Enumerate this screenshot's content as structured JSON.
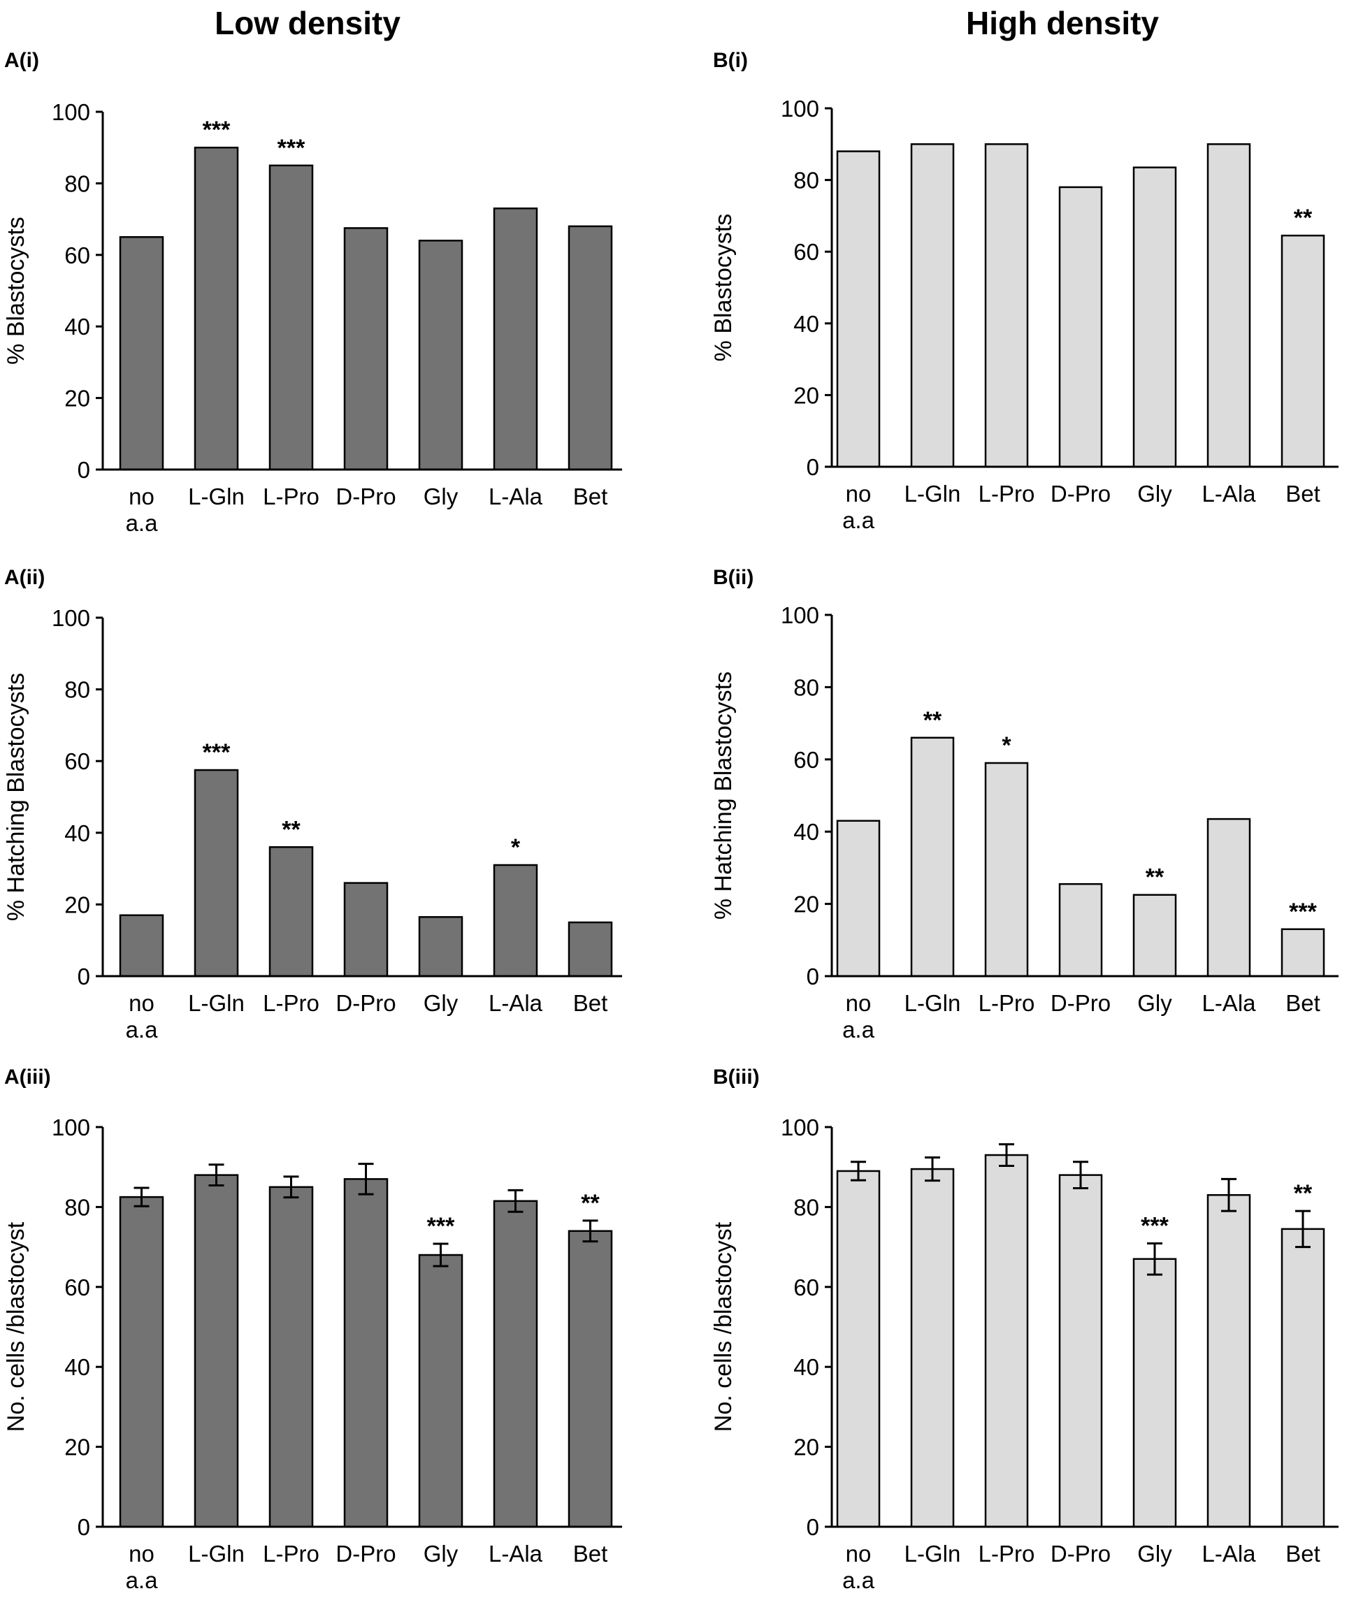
{
  "columns": {
    "left_title": "Low density",
    "right_title": "High density"
  },
  "categories": [
    {
      "main": "no",
      "sub": "a.a"
    },
    {
      "main": "L-Gln",
      "sub": ""
    },
    {
      "main": "L-Pro",
      "sub": ""
    },
    {
      "main": "D-Pro",
      "sub": ""
    },
    {
      "main": "Gly",
      "sub": ""
    },
    {
      "main": "L-Ala",
      "sub": ""
    },
    {
      "main": "Bet",
      "sub": ""
    }
  ],
  "colors": {
    "low_density_bar": "#737373",
    "high_density_bar": "#dcdcdc",
    "axis": "#000000"
  },
  "chart_data": [
    {
      "id": "Ai",
      "panel": "A(i)",
      "type": "bar",
      "ylabel": "% Blastocysts",
      "ylim": [
        0,
        100
      ],
      "yticks": [
        0,
        20,
        40,
        60,
        80,
        100
      ],
      "series": "low_density_bar",
      "values": [
        65,
        90,
        85,
        67.5,
        64,
        73,
        68
      ],
      "errors": null,
      "annotations": [
        "",
        "***",
        "***",
        "",
        "",
        "",
        ""
      ]
    },
    {
      "id": "Bi",
      "panel": "B(i)",
      "type": "bar",
      "ylabel": "% Blastocysts",
      "ylim": [
        0,
        100
      ],
      "yticks": [
        0,
        20,
        40,
        60,
        80,
        100
      ],
      "series": "high_density_bar",
      "values": [
        88,
        90,
        90,
        78,
        83.5,
        90,
        64.5
      ],
      "errors": null,
      "annotations": [
        "",
        "",
        "",
        "",
        "",
        "",
        "**"
      ]
    },
    {
      "id": "Aii",
      "panel": "A(ii)",
      "type": "bar",
      "ylabel": "% Hatching Blastocysts",
      "ylim": [
        0,
        100
      ],
      "yticks": [
        0,
        20,
        40,
        60,
        80,
        100
      ],
      "series": "low_density_bar",
      "values": [
        17,
        57.5,
        36,
        26,
        16.5,
        31,
        15
      ],
      "errors": null,
      "annotations": [
        "",
        "***",
        "**",
        "",
        "",
        "*",
        ""
      ]
    },
    {
      "id": "Bii",
      "panel": "B(ii)",
      "type": "bar",
      "ylabel": "% Hatching Blastocysts",
      "ylim": [
        0,
        100
      ],
      "yticks": [
        0,
        20,
        40,
        60,
        80,
        100
      ],
      "series": "high_density_bar",
      "values": [
        43,
        66,
        59,
        25.5,
        22.5,
        43.5,
        13
      ],
      "errors": null,
      "annotations": [
        "",
        "**",
        "*",
        "",
        "**",
        "",
        "***"
      ]
    },
    {
      "id": "Aiii",
      "panel": "A(iii)",
      "type": "bar",
      "ylabel": "No. cells /blastocyst",
      "ylim": [
        0,
        100
      ],
      "yticks": [
        0,
        20,
        40,
        60,
        80,
        100
      ],
      "series": "low_density_bar",
      "values": [
        82.5,
        88,
        85,
        87,
        68,
        81.5,
        74
      ],
      "errors": [
        2.3,
        2.6,
        2.6,
        3.8,
        2.8,
        2.7,
        2.6
      ],
      "annotations": [
        "",
        "",
        "",
        "",
        "***",
        "",
        "**"
      ]
    },
    {
      "id": "Biii",
      "panel": "B(iii)",
      "type": "bar",
      "ylabel": "No. cells /blastocyst",
      "ylim": [
        0,
        100
      ],
      "yticks": [
        0,
        20,
        40,
        60,
        80,
        100
      ],
      "series": "high_density_bar",
      "values": [
        89,
        89.5,
        93,
        88,
        67,
        83,
        74.5
      ],
      "errors": [
        2.3,
        2.9,
        2.7,
        3.3,
        3.9,
        4.0,
        4.5
      ],
      "annotations": [
        "",
        "",
        "",
        "",
        "***",
        "",
        "**"
      ]
    }
  ]
}
